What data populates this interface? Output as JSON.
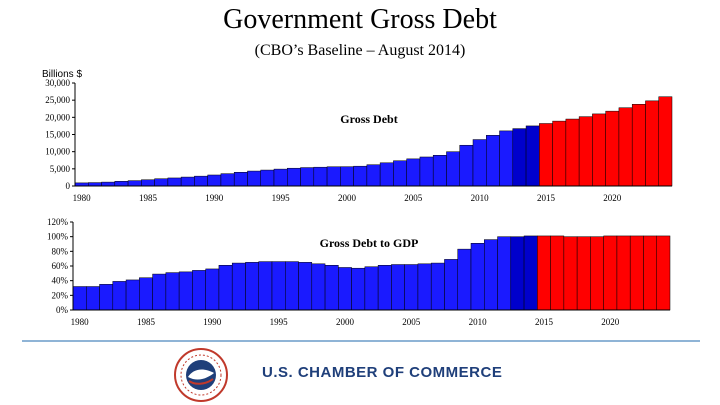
{
  "header": {
    "title": "Government Gross Debt",
    "subtitle": "(CBO’s Baseline – August 2014)"
  },
  "colors": {
    "actual": "#1a1aff",
    "recent": "#0000cc",
    "projected": "#ff0000"
  },
  "chart_data": [
    {
      "type": "bar",
      "title": "Gross Debt",
      "ylabel": "Billions $",
      "ylim": [
        0,
        30000
      ],
      "yticks": [
        "0",
        "5,000",
        "10,000",
        "15,000",
        "20,000",
        "25,000",
        "30,000"
      ],
      "xticks": [
        "1980",
        "1985",
        "1990",
        "1995",
        "2000",
        "2005",
        "2010",
        "2015",
        "2020"
      ],
      "grid": false,
      "x": [
        1980,
        1981,
        1982,
        1983,
        1984,
        1985,
        1986,
        1987,
        1988,
        1989,
        1990,
        1991,
        1992,
        1993,
        1994,
        1995,
        1996,
        1997,
        1998,
        1999,
        2000,
        2001,
        2002,
        2003,
        2004,
        2005,
        2006,
        2007,
        2008,
        2009,
        2010,
        2011,
        2012,
        2013,
        2014,
        2015,
        2016,
        2017,
        2018,
        2019,
        2020,
        2021,
        2022,
        2023,
        2024
      ],
      "values": [
        909,
        995,
        1137,
        1372,
        1565,
        1817,
        2120,
        2346,
        2601,
        2868,
        3206,
        3598,
        4002,
        4351,
        4643,
        4921,
        5181,
        5369,
        5478,
        5606,
        5629,
        5770,
        6198,
        6760,
        7355,
        7905,
        8451,
        8951,
        9986,
        11876,
        13529,
        14764,
        16051,
        16719,
        17500,
        18200,
        18900,
        19500,
        20200,
        21000,
        21800,
        22800,
        23800,
        24800,
        26000
      ],
      "segments": [
        "actual",
        "actual",
        "actual",
        "actual",
        "actual",
        "actual",
        "actual",
        "actual",
        "actual",
        "actual",
        "actual",
        "actual",
        "actual",
        "actual",
        "actual",
        "actual",
        "actual",
        "actual",
        "actual",
        "actual",
        "actual",
        "actual",
        "actual",
        "actual",
        "actual",
        "actual",
        "actual",
        "actual",
        "actual",
        "actual",
        "actual",
        "actual",
        "actual",
        "recent",
        "recent",
        "projected",
        "projected",
        "projected",
        "projected",
        "projected",
        "projected",
        "projected",
        "projected",
        "projected",
        "projected"
      ]
    },
    {
      "type": "bar",
      "title": "Gross Debt to GDP",
      "ylim": [
        0,
        120
      ],
      "yticks": [
        "0%",
        "20%",
        "40%",
        "60%",
        "80%",
        "100%",
        "120%"
      ],
      "xticks": [
        "1980",
        "1985",
        "1990",
        "1995",
        "2000",
        "2005",
        "2010",
        "2015",
        "2020"
      ],
      "grid": false,
      "x": [
        1980,
        1981,
        1982,
        1983,
        1984,
        1985,
        1986,
        1987,
        1988,
        1989,
        1990,
        1991,
        1992,
        1993,
        1994,
        1995,
        1996,
        1997,
        1998,
        1999,
        2000,
        2001,
        2002,
        2003,
        2004,
        2005,
        2006,
        2007,
        2008,
        2009,
        2010,
        2011,
        2012,
        2013,
        2014,
        2015,
        2016,
        2017,
        2018,
        2019,
        2020,
        2021,
        2022,
        2023,
        2024
      ],
      "values": [
        32,
        32,
        35,
        39,
        41,
        44,
        49,
        51,
        52,
        54,
        56,
        61,
        64,
        65,
        66,
        66,
        66,
        65,
        63,
        61,
        58,
        57,
        59,
        61,
        62,
        62,
        63,
        64,
        69,
        83,
        91,
        96,
        100,
        100,
        101,
        101,
        101,
        100,
        100,
        100,
        101,
        101,
        101,
        101,
        101
      ],
      "segments": [
        "actual",
        "actual",
        "actual",
        "actual",
        "actual",
        "actual",
        "actual",
        "actual",
        "actual",
        "actual",
        "actual",
        "actual",
        "actual",
        "actual",
        "actual",
        "actual",
        "actual",
        "actual",
        "actual",
        "actual",
        "actual",
        "actual",
        "actual",
        "actual",
        "actual",
        "actual",
        "actual",
        "actual",
        "actual",
        "actual",
        "actual",
        "actual",
        "actual",
        "recent",
        "recent",
        "projected",
        "projected",
        "projected",
        "projected",
        "projected",
        "projected",
        "projected",
        "projected",
        "projected",
        "projected"
      ]
    }
  ],
  "footer": {
    "org_name": "U.S. CHAMBER OF COMMERCE"
  }
}
